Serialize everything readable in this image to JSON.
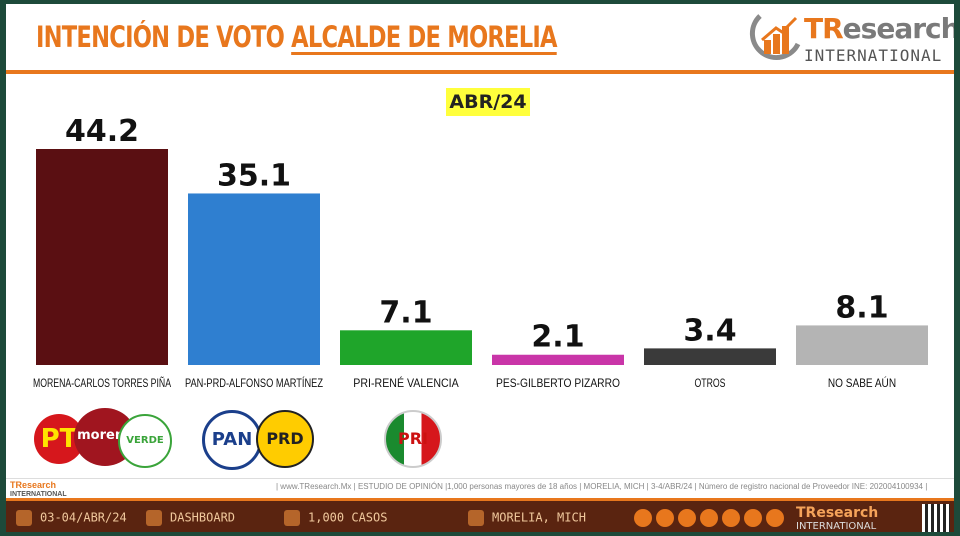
{
  "header": {
    "title_prefix": "INTENCIÓN DE VOTO",
    "title_highlight": "ALCALDE DE MORELIA",
    "brand_name_a": "TR",
    "brand_name_b": "esearch",
    "brand_sub": "INTERNATIONAL",
    "date_badge": "ABR/24"
  },
  "chart_data": {
    "type": "bar",
    "categories": [
      "MORENA-CARLOS TORRES PIÑA",
      "PAN-PRD-ALFONSO MARTÍNEZ",
      "PRI-RENÉ VALENCIA",
      "PES-GILBERTO PIZARRO",
      "OTROS",
      "NO SABE AÚN"
    ],
    "values": [
      44.2,
      35.1,
      7.1,
      2.1,
      3.4,
      8.1
    ],
    "value_labels": [
      "44.2",
      "35.1",
      "7.1",
      "2.1",
      "3.4",
      "8.1"
    ],
    "colors": [
      "#5a0f12",
      "#2f7fd0",
      "#1fa52a",
      "#c935a8",
      "#3a3a3a",
      "#b4b4b4"
    ],
    "ylim": [
      0,
      44.2
    ]
  },
  "logos": {
    "morena": "morena",
    "pan": "PAN",
    "prd": "PRD",
    "pri": "PRI",
    "verde": "VERDE",
    "pt": "PT"
  },
  "footnote": {
    "brand": "TResearch",
    "brand_sub": "INTERNATIONAL",
    "text": "| www.TResearch.Mx | ESTUDIO DE OPINIÓN |1,000 personas mayores de 18 años | MORELIA, MICH | 3-4/ABR/24 | Número de registro nacional de Proveedor INE: 202004100934 |"
  },
  "footer": {
    "date": "03-04/ABR/24",
    "dashboard": "DASHBOARD",
    "cases": "1,000 CASOS",
    "location": "MORELIA, MICH",
    "brand": "TResearch",
    "brand_sub": "INTERNATIONAL"
  }
}
